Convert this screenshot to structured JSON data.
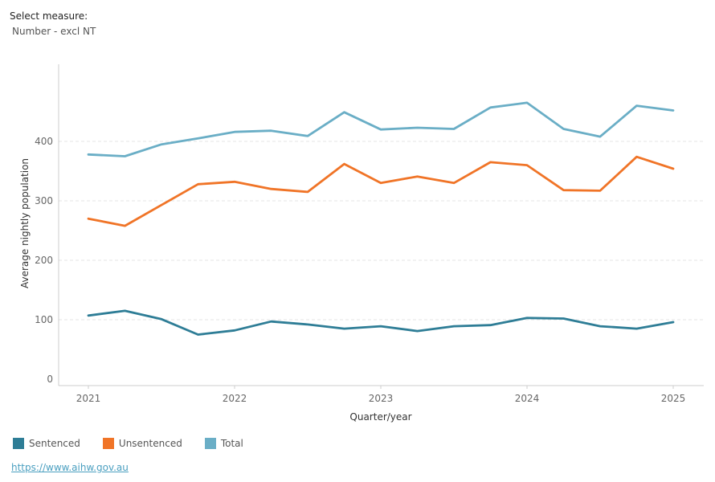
{
  "filter": {
    "label": "Select measure:",
    "value": "Number - excl NT"
  },
  "chart_data": {
    "type": "line",
    "xlabel": "Quarter/year",
    "ylabel": "Average nightly population",
    "x_ticks": [
      "2021",
      "2022",
      "2023",
      "2024",
      "2025"
    ],
    "y_ticks": [
      0,
      100,
      200,
      300,
      400
    ],
    "ylim": [
      0,
      490
    ],
    "grid": true,
    "legend": "bottom-left",
    "x": [
      "2021 Q1",
      "2021 Q2",
      "2021 Q3",
      "2021 Q4",
      "2022 Q1",
      "2022 Q2",
      "2022 Q3",
      "2022 Q4",
      "2023 Q1",
      "2023 Q2",
      "2023 Q3",
      "2023 Q4",
      "2024 Q1",
      "2024 Q2",
      "2024 Q3",
      "2024 Q4",
      "2025 Q1"
    ],
    "series": [
      {
        "name": "Sentenced",
        "color": "#2e7d96",
        "values": [
          107,
          115,
          101,
          75,
          82,
          97,
          92,
          85,
          89,
          81,
          89,
          91,
          103,
          102,
          89,
          85,
          96
        ]
      },
      {
        "name": "Unsentenced",
        "color": "#f07427",
        "values": [
          270,
          258,
          293,
          328,
          332,
          320,
          315,
          362,
          330,
          341,
          330,
          365,
          360,
          318,
          317,
          374,
          354
        ]
      },
      {
        "name": "Total",
        "color": "#6aaec6",
        "values": [
          378,
          375,
          395,
          405,
          416,
          418,
          409,
          449,
          420,
          423,
          421,
          457,
          465,
          421,
          408,
          460,
          452
        ]
      }
    ]
  },
  "source": {
    "link_text": "https://www.aihw.gov.au"
  }
}
